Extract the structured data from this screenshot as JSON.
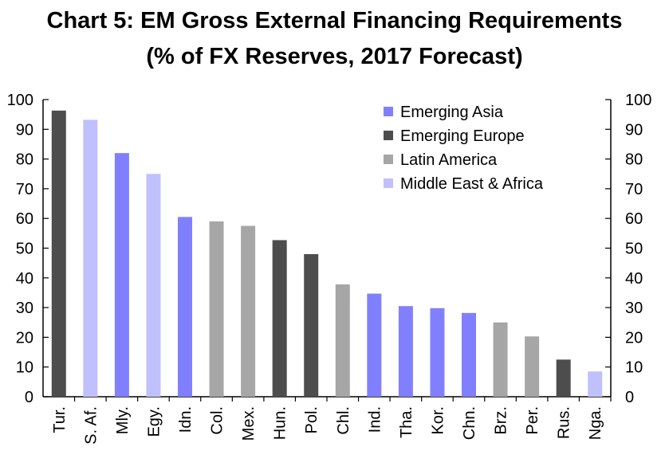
{
  "chart_data": {
    "type": "bar",
    "title": "Chart 5: EM Gross External Financing Requirements",
    "subtitle": "(% of FX Reserves, 2017 Forecast)",
    "ylim": [
      0,
      100
    ],
    "yticks": [
      0,
      10,
      20,
      30,
      40,
      50,
      60,
      70,
      80,
      90,
      100
    ],
    "secondary_y_axis": true,
    "legend_position": "top-right",
    "grid": false,
    "groups": [
      {
        "name": "Emerging Asia",
        "color": "#8080ff"
      },
      {
        "name": "Emerging Europe",
        "color": "#4d4d4d"
      },
      {
        "name": "Latin America",
        "color": "#a6a6a6"
      },
      {
        "name": "Middle East & Africa",
        "color": "#c0c0ff"
      }
    ],
    "categories": [
      "Tur.",
      "S. Af.",
      "Mly.",
      "Egy.",
      "Idn.",
      "Col.",
      "Mex.",
      "Hun.",
      "Pol.",
      "Chl.",
      "Ind.",
      "Tha.",
      "Kor.",
      "Chn.",
      "Brz.",
      "Per.",
      "Rus.",
      "Nga."
    ],
    "values": [
      96.3,
      93.2,
      82.0,
      75.0,
      60.5,
      59.0,
      57.5,
      52.7,
      48.0,
      37.8,
      34.7,
      30.5,
      29.8,
      28.2,
      25.0,
      20.3,
      12.5,
      8.5
    ],
    "bar_groups": [
      "Emerging Europe",
      "Middle East & Africa",
      "Emerging Asia",
      "Middle East & Africa",
      "Emerging Asia",
      "Latin America",
      "Latin America",
      "Emerging Europe",
      "Emerging Europe",
      "Latin America",
      "Emerging Asia",
      "Emerging Asia",
      "Emerging Asia",
      "Emerging Asia",
      "Latin America",
      "Latin America",
      "Emerging Europe",
      "Middle East & Africa"
    ]
  }
}
